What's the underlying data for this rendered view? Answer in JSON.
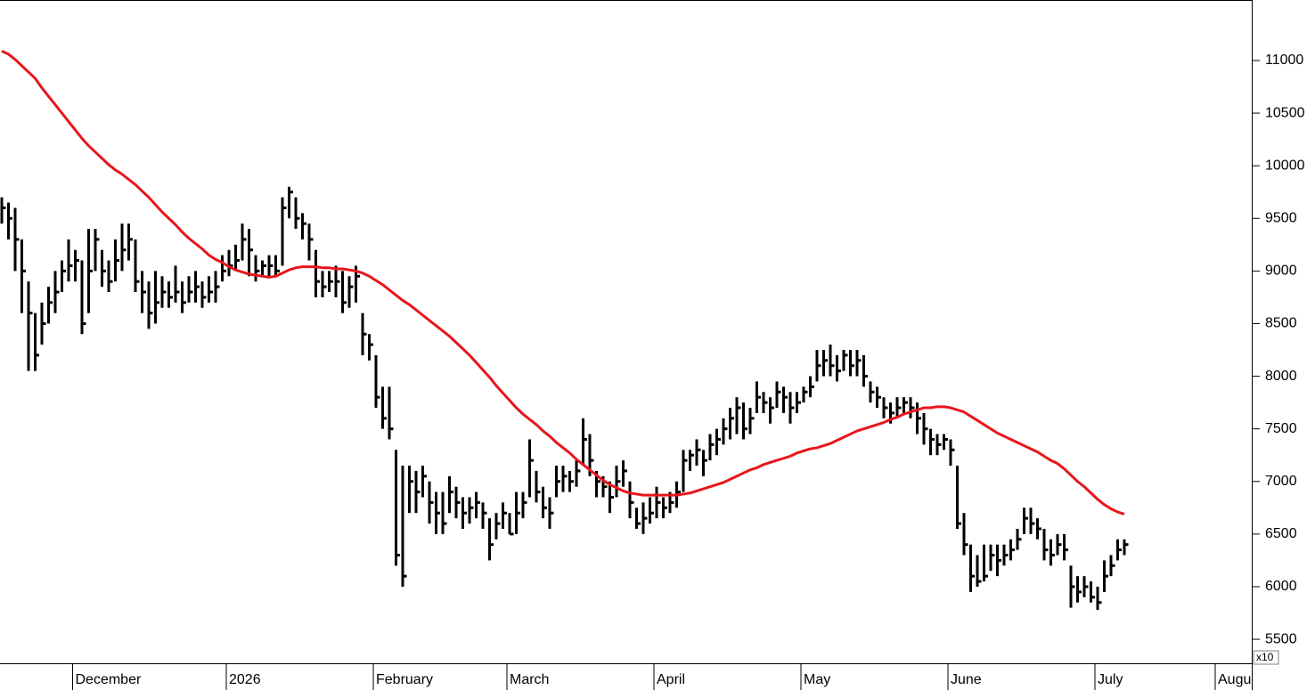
{
  "chart_data": {
    "type": "ohlc",
    "categories": [
      null,
      null,
      null,
      null,
      null,
      null,
      null,
      null,
      null,
      null,
      null,
      "December",
      null,
      null,
      null,
      null,
      null,
      null,
      null,
      null,
      null,
      null,
      null,
      null,
      null,
      null,
      null,
      null,
      null,
      null,
      null,
      null,
      null,
      null,
      "2026",
      null,
      null,
      null,
      null,
      null,
      null,
      null,
      null,
      null,
      null,
      null,
      null,
      null,
      null,
      null,
      null,
      null,
      null,
      null,
      null,
      null,
      "February",
      null,
      null,
      null,
      null,
      null,
      null,
      null,
      null,
      null,
      null,
      null,
      null,
      null,
      null,
      null,
      null,
      null,
      null,
      null,
      "March",
      null,
      null,
      null,
      null,
      null,
      null,
      null,
      null,
      null,
      null,
      null,
      null,
      null,
      null,
      null,
      null,
      null,
      null,
      null,
      null,
      null,
      "April",
      null,
      null,
      null,
      null,
      null,
      null,
      null,
      null,
      null,
      null,
      null,
      null,
      null,
      null,
      null,
      null,
      null,
      null,
      null,
      null,
      null,
      "May",
      null,
      null,
      null,
      null,
      null,
      null,
      null,
      null,
      null,
      null,
      null,
      null,
      null,
      null,
      null,
      null,
      null,
      null,
      null,
      null,
      null,
      "June",
      null,
      null,
      null,
      null,
      null,
      null,
      null,
      null,
      null,
      null,
      null,
      null,
      null,
      null,
      null,
      null,
      null,
      null,
      null,
      null,
      null,
      "July",
      null,
      null,
      null,
      null,
      null,
      null,
      null,
      null,
      null,
      null,
      null,
      null,
      null,
      null,
      null,
      null,
      null,
      "August",
      null,
      null,
      null,
      null,
      null
    ],
    "high": [
      9700,
      9650,
      9600,
      9300,
      8900,
      8600,
      8700,
      8850,
      9000,
      9100,
      9300,
      9200,
      9100,
      9400,
      9400,
      9200,
      9100,
      9300,
      9450,
      9450,
      9300,
      9000,
      8900,
      9000,
      8950,
      8900,
      9050,
      8900,
      8950,
      9000,
      8900,
      8950,
      9000,
      9150,
      9200,
      9250,
      9450,
      9400,
      9150,
      9100,
      9150,
      9150,
      9700,
      9800,
      9700,
      9550,
      9450,
      9200,
      9000,
      9000,
      9050,
      9000,
      8950,
      9050,
      8600,
      8400,
      8200,
      7900,
      7900,
      7300,
      7150,
      7150,
      7100,
      7150,
      7000,
      6900,
      6900,
      7050,
      6950,
      6850,
      6850,
      6900,
      6800,
      6650,
      6700,
      6800,
      6700,
      6900,
      6900,
      7400,
      7100,
      6950,
      6850,
      7150,
      7150,
      7100,
      7200,
      7600,
      7450,
      7100,
      7050,
      7000,
      7150,
      7200,
      7000,
      6750,
      6800,
      6850,
      6950,
      6850,
      6900,
      7000,
      7300,
      7300,
      7400,
      7300,
      7450,
      7500,
      7600,
      7700,
      7800,
      7750,
      7700,
      7950,
      7850,
      7800,
      7950,
      7900,
      7850,
      7850,
      7900,
      8000,
      8250,
      8250,
      8300,
      8200,
      8250,
      8250,
      8250,
      8200,
      7950,
      7900,
      7800,
      7750,
      7800,
      7800,
      7800,
      7750,
      7650,
      7500,
      7450,
      7450,
      7400,
      7150,
      6700,
      6400,
      6300,
      6400,
      6400,
      6400,
      6400,
      6450,
      6550,
      6750,
      6750,
      6650,
      6550,
      6450,
      6500,
      6500,
      6200,
      6100,
      6100,
      6050,
      6000,
      6250,
      6300,
      6450,
      6450,
      null,
      null,
      null,
      null,
      null,
      null,
      null,
      null,
      null,
      null,
      null,
      null,
      null,
      null,
      null,
      null,
      null,
      null,
      null
    ],
    "low": [
      9450,
      9300,
      9000,
      8600,
      8050,
      8050,
      8300,
      8500,
      8600,
      8800,
      8900,
      8900,
      8400,
      8600,
      9000,
      8850,
      8800,
      8900,
      9000,
      9100,
      8800,
      8600,
      8450,
      8500,
      8650,
      8650,
      8700,
      8600,
      8700,
      8700,
      8650,
      8700,
      8700,
      8900,
      8950,
      9000,
      9100,
      8950,
      8900,
      8950,
      8950,
      8950,
      9050,
      9500,
      9400,
      9300,
      9100,
      8750,
      8750,
      8800,
      8750,
      8600,
      8650,
      8700,
      8200,
      8150,
      7700,
      7500,
      7400,
      6200,
      6000,
      6700,
      6700,
      6850,
      6600,
      6500,
      6500,
      6700,
      6650,
      6550,
      6600,
      6650,
      6550,
      6250,
      6450,
      6550,
      6500,
      6500,
      6650,
      6850,
      6800,
      6650,
      6550,
      6850,
      6900,
      6900,
      6950,
      7150,
      7050,
      6850,
      6850,
      6700,
      6850,
      6950,
      6650,
      6550,
      6500,
      6600,
      6650,
      6650,
      6700,
      6750,
      6900,
      7100,
      7150,
      7050,
      7200,
      7250,
      7350,
      7400,
      7450,
      7400,
      7450,
      7650,
      7650,
      7550,
      7700,
      7650,
      7550,
      7650,
      7750,
      7800,
      7950,
      8000,
      8000,
      7950,
      8050,
      8000,
      8000,
      7900,
      7750,
      7700,
      7600,
      7550,
      7600,
      7650,
      7600,
      7450,
      7350,
      7250,
      7250,
      7300,
      7150,
      6550,
      6300,
      5950,
      6000,
      6050,
      6150,
      6100,
      6200,
      6250,
      6350,
      6500,
      6500,
      6450,
      6250,
      6200,
      6300,
      6250,
      5800,
      5850,
      5900,
      5850,
      5780,
      5950,
      6100,
      6250,
      6300,
      null,
      null,
      null,
      null,
      null,
      null,
      null,
      null,
      null,
      null,
      null,
      null,
      null,
      null,
      null,
      null,
      null,
      null,
      null
    ],
    "close": [
      9600,
      9500,
      9300,
      9000,
      8600,
      8200,
      8500,
      8700,
      8800,
      9000,
      9050,
      9100,
      8500,
      9000,
      9300,
      9000,
      8900,
      9100,
      9200,
      9300,
      8900,
      8800,
      8600,
      8700,
      8800,
      8750,
      8800,
      8700,
      8800,
      8850,
      8750,
      8800,
      8850,
      9000,
      9050,
      9100,
      9300,
      9200,
      9000,
      9050,
      9050,
      9000,
      9600,
      9750,
      9500,
      9450,
      9300,
      8900,
      8850,
      8900,
      8900,
      8700,
      8850,
      8950,
      8400,
      8300,
      7800,
      7600,
      7500,
      6300,
      6100,
      7000,
      6900,
      7050,
      6800,
      6700,
      6600,
      6900,
      6800,
      6700,
      6750,
      6800,
      6700,
      6400,
      6600,
      6700,
      6500,
      6700,
      6800,
      7200,
      6900,
      6750,
      6700,
      7000,
      7050,
      7000,
      7100,
      7400,
      7200,
      7000,
      6950,
      6850,
      7000,
      7100,
      6800,
      6600,
      6650,
      6700,
      6800,
      6750,
      6800,
      6900,
      7200,
      7250,
      7300,
      7200,
      7350,
      7400,
      7500,
      7600,
      7700,
      7500,
      7600,
      7800,
      7750,
      7700,
      7850,
      7800,
      7700,
      7750,
      7850,
      7900,
      8100,
      8150,
      8100,
      8050,
      8200,
      8100,
      8150,
      8000,
      7850,
      7800,
      7700,
      7650,
      7700,
      7750,
      7700,
      7600,
      7500,
      7400,
      7350,
      7400,
      7300,
      6600,
      6400,
      6100,
      6050,
      6100,
      6300,
      6250,
      6300,
      6350,
      6450,
      6650,
      6600,
      6550,
      6350,
      6300,
      6400,
      6350,
      6000,
      5950,
      6000,
      5900,
      5850,
      6100,
      6200,
      6350,
      6400,
      null,
      null,
      null,
      null,
      null,
      null,
      null,
      null,
      null,
      null,
      null,
      null,
      null,
      null,
      null,
      null,
      null,
      null,
      null
    ],
    "bar_color": "#000000",
    "moving_average": {
      "color": "#e8161b",
      "values": [
        11090,
        11060,
        11010,
        10950,
        10890,
        10830,
        10740,
        10660,
        10580,
        10500,
        10420,
        10340,
        10260,
        10190,
        10130,
        10070,
        10010,
        9960,
        9920,
        9870,
        9820,
        9760,
        9700,
        9630,
        9560,
        9500,
        9440,
        9370,
        9310,
        9260,
        9210,
        9150,
        9110,
        9080,
        9040,
        9010,
        8990,
        8970,
        8960,
        8950,
        8940,
        8950,
        8980,
        9010,
        9030,
        9040,
        9040,
        9040,
        9030,
        9030,
        9020,
        9020,
        9010,
        9000,
        8980,
        8950,
        8910,
        8870,
        8820,
        8770,
        8720,
        8680,
        8630,
        8580,
        8530,
        8480,
        8430,
        8380,
        8320,
        8260,
        8200,
        8130,
        8060,
        7990,
        7910,
        7840,
        7770,
        7700,
        7640,
        7590,
        7540,
        7480,
        7430,
        7370,
        7320,
        7270,
        7210,
        7160,
        7110,
        7060,
        7010,
        6970,
        6940,
        6910,
        6890,
        6880,
        6870,
        6870,
        6870,
        6870,
        6870,
        6870,
        6880,
        6890,
        6910,
        6930,
        6950,
        6970,
        6990,
        7020,
        7050,
        7080,
        7110,
        7130,
        7160,
        7180,
        7200,
        7220,
        7240,
        7270,
        7290,
        7310,
        7320,
        7340,
        7360,
        7390,
        7420,
        7450,
        7480,
        7500,
        7520,
        7540,
        7560,
        7590,
        7610,
        7640,
        7660,
        7680,
        7700,
        7700,
        7710,
        7710,
        7700,
        7680,
        7660,
        7620,
        7580,
        7540,
        7500,
        7460,
        7430,
        7400,
        7370,
        7340,
        7310,
        7280,
        7240,
        7200,
        7170,
        7120,
        7060,
        7000,
        6950,
        6890,
        6830,
        6780,
        6740,
        6710,
        6690,
        null,
        null,
        null,
        null,
        null,
        null,
        null,
        null,
        null,
        null,
        null,
        null,
        null,
        null,
        null,
        null,
        null,
        null,
        null
      ]
    },
    "ylim": [
      5272,
      11575
    ],
    "yticks": [
      5500,
      6000,
      6500,
      7000,
      7500,
      8000,
      8500,
      9000,
      9500,
      10000,
      10500,
      11000
    ],
    "y_axis_note": "x10"
  }
}
